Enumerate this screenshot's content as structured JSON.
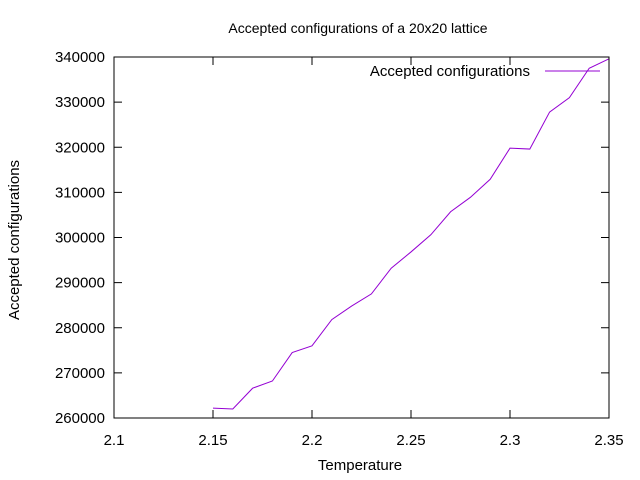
{
  "chart_data": {
    "type": "line",
    "title": "Accepted configurations of a 20x20 lattice",
    "xlabel": "Temperature",
    "ylabel": "Accepted configurations",
    "xlim": [
      2.1,
      2.35
    ],
    "ylim": [
      260000,
      340000
    ],
    "x_ticks": [
      "2.1",
      "2.15",
      "2.2",
      "2.25",
      "2.3",
      "2.35"
    ],
    "y_ticks": [
      "260000",
      "270000",
      "280000",
      "290000",
      "300000",
      "310000",
      "320000",
      "330000",
      "340000"
    ],
    "grid": false,
    "legend": "top-right",
    "series": [
      {
        "name": "Accepted configurations",
        "color": "#9400d3",
        "x": [
          2.15,
          2.16,
          2.17,
          2.18,
          2.19,
          2.2,
          2.21,
          2.22,
          2.23,
          2.24,
          2.25,
          2.26,
          2.27,
          2.28,
          2.29,
          2.3,
          2.31,
          2.32,
          2.33,
          2.34,
          2.35
        ],
        "y": [
          262200,
          262000,
          266600,
          268200,
          274500,
          276000,
          281800,
          284800,
          287500,
          293200,
          296800,
          300600,
          305700,
          308900,
          312900,
          319800,
          319600,
          327800,
          331000,
          337500,
          339600
        ]
      }
    ]
  }
}
